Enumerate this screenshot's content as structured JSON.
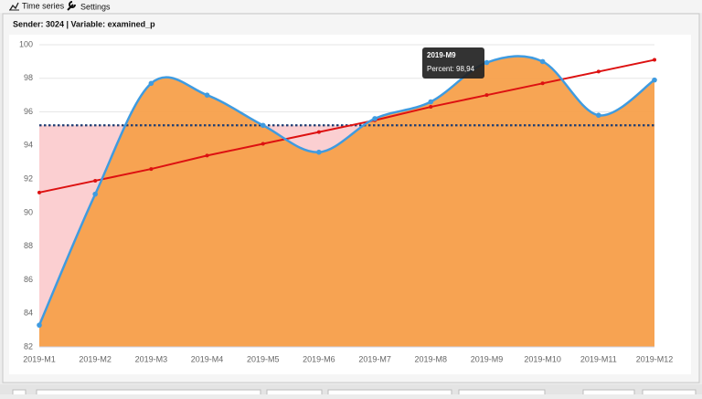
{
  "tabs": [
    "Time series",
    "Settings"
  ],
  "header": "Sender: 3024 | Variable: examined_p",
  "chart_data": {
    "type": "spline",
    "categories": [
      "2019-M1",
      "2019-M2",
      "2019-M3",
      "2019-M4",
      "2019-M5",
      "2019-M6",
      "2019-M7",
      "2019-M8",
      "2019-M9",
      "2019-M10",
      "2019-M11",
      "2019-M12"
    ],
    "series": [
      {
        "color": "#3f9be0",
        "area_color": "#f7a04b",
        "values": [
          83.3,
          91.1,
          97.7,
          97.0,
          95.2,
          93.6,
          95.6,
          96.6,
          98.94,
          99.0,
          95.8,
          97.9
        ]
      },
      {
        "color": "#dd1111",
        "values": [
          91.2,
          91.9,
          92.6,
          93.4,
          94.1,
          94.8,
          95.5,
          96.3,
          97.0,
          97.7,
          98.4,
          99.1
        ]
      }
    ],
    "threshold": 95.2,
    "threshold_color": "#1f3d73",
    "below_color": "#fbcfd1",
    "ylim": [
      82,
      100
    ],
    "yticks": [
      82,
      84,
      86,
      88,
      90,
      92,
      94,
      96,
      98,
      100
    ],
    "grid": true,
    "tooltip": {
      "title": "2019-M9",
      "text": "Percent: 98,94"
    }
  }
}
